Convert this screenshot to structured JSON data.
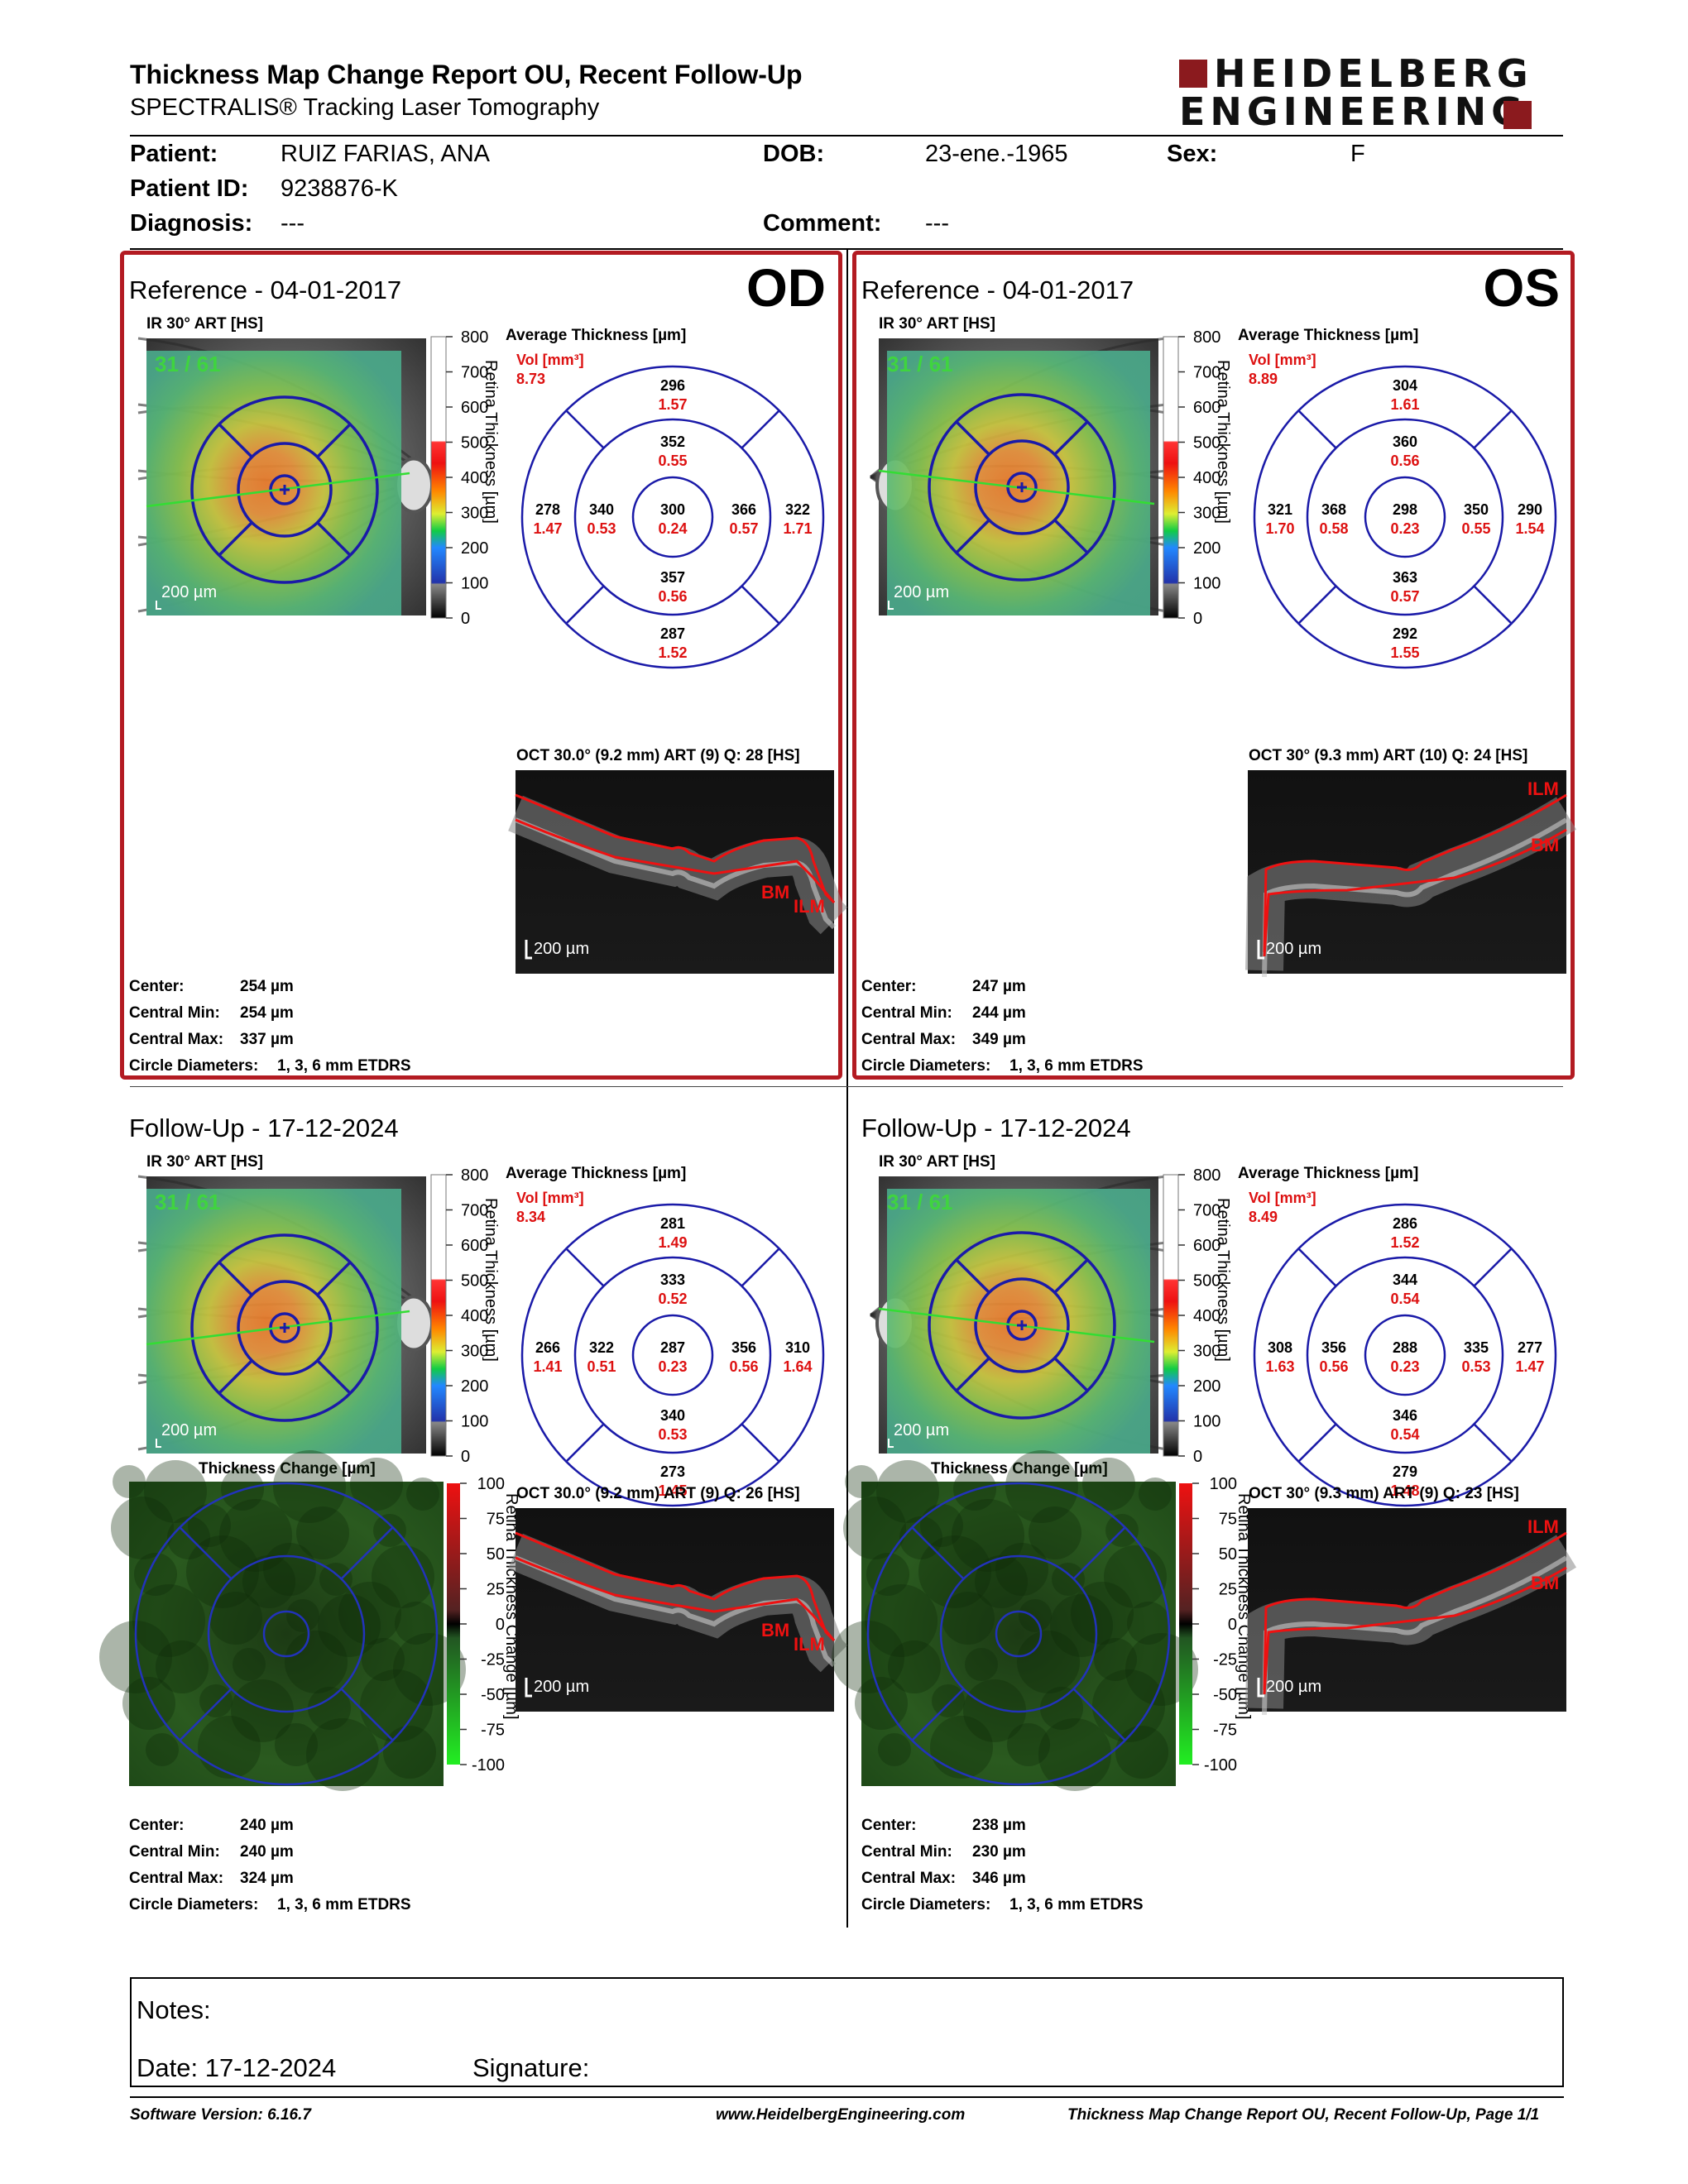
{
  "header": {
    "title": "Thickness Map Change Report OU, Recent Follow-Up",
    "subtitle": "SPECTRALIS® Tracking Laser Tomography",
    "brand_line1": "HEIDELBERG",
    "brand_line2": "ENGINEERING",
    "brand_color": "#8b1a1e"
  },
  "patient": {
    "patient_label": "Patient:",
    "patient_value": "RUIZ FARIAS, ANA",
    "dob_label": "DOB:",
    "dob_value": "23-ene.-1965",
    "sex_label": "Sex:",
    "sex_value": "F",
    "id_label": "Patient ID:",
    "id_value": "9238876-K",
    "diagnosis_label": "Diagnosis:",
    "diagnosis_value": "---",
    "comment_label": "Comment:",
    "comment_value": "---"
  },
  "colors": {
    "frame": "#b31b22",
    "measure_red": "#dd1111",
    "grid_blue": "#1a1aa8"
  },
  "common": {
    "ir_label": "IR 30° ART [HS]",
    "avg_label": "Average Thickness [µm]",
    "vol_label": "Vol [mm³]",
    "scale_label": "200 µm",
    "frame_count": "31 / 61",
    "colorbar_title": "Retina Thickness [µm]",
    "colorbar_ticks": [
      "800",
      "700",
      "600",
      "500",
      "400",
      "300",
      "200",
      "100",
      "0"
    ],
    "change_title": "Thickness Change [µm]",
    "change_bar_title": "Retina Thickness Change [µm]",
    "change_ticks": [
      "100",
      "75",
      "50",
      "25",
      "0",
      "-25",
      "-50",
      "-75",
      "-100"
    ],
    "ilm": "ILM",
    "bm": "BM",
    "center_label": "Center:",
    "min_label": "Central Min:",
    "max_label": "Central Max:",
    "circle_label": "Circle Diameters:",
    "circle_value": "1, 3, 6 mm ETDRS"
  },
  "panels": {
    "od_ref": {
      "title": "Reference - 04-01-2017",
      "eye": "OD",
      "oct": "OCT 30.0° (9.2 mm) ART (9) Q: 28 [HS]",
      "vol": "8.73",
      "etdrs": {
        "center": [
          "300",
          "0.24"
        ],
        "inner_top": [
          "352",
          "0.55"
        ],
        "inner_bottom": [
          "357",
          "0.56"
        ],
        "inner_left": [
          "340",
          "0.53"
        ],
        "inner_right": [
          "366",
          "0.57"
        ],
        "outer_top": [
          "296",
          "1.57"
        ],
        "outer_bottom": [
          "287",
          "1.52"
        ],
        "outer_left": [
          "278",
          "1.47"
        ],
        "outer_right": [
          "322",
          "1.71"
        ]
      },
      "center": "254 µm",
      "min": "254 µm",
      "max": "337 µm"
    },
    "os_ref": {
      "title": "Reference - 04-01-2017",
      "eye": "OS",
      "oct": "OCT 30° (9.3 mm) ART (10) Q: 24 [HS]",
      "vol": "8.89",
      "etdrs": {
        "center": [
          "298",
          "0.23"
        ],
        "inner_top": [
          "360",
          "0.56"
        ],
        "inner_bottom": [
          "363",
          "0.57"
        ],
        "inner_left": [
          "368",
          "0.58"
        ],
        "inner_right": [
          "350",
          "0.55"
        ],
        "outer_top": [
          "304",
          "1.61"
        ],
        "outer_bottom": [
          "292",
          "1.55"
        ],
        "outer_left": [
          "321",
          "1.70"
        ],
        "outer_right": [
          "290",
          "1.54"
        ]
      },
      "center": "247 µm",
      "min": "244 µm",
      "max": "349 µm"
    },
    "od_fu": {
      "title": "Follow-Up - 17-12-2024",
      "oct": "OCT 30.0° (9.2 mm) ART (9) Q: 26 [HS]",
      "vol": "8.34",
      "etdrs": {
        "center": [
          "287",
          "0.23"
        ],
        "inner_top": [
          "333",
          "0.52"
        ],
        "inner_bottom": [
          "340",
          "0.53"
        ],
        "inner_left": [
          "322",
          "0.51"
        ],
        "inner_right": [
          "356",
          "0.56"
        ],
        "outer_top": [
          "281",
          "1.49"
        ],
        "outer_bottom": [
          "273",
          "1.45"
        ],
        "outer_left": [
          "266",
          "1.41"
        ],
        "outer_right": [
          "310",
          "1.64"
        ]
      },
      "center": "240 µm",
      "min": "240 µm",
      "max": "324 µm"
    },
    "os_fu": {
      "title": "Follow-Up - 17-12-2024",
      "oct": "OCT 30° (9.3 mm) ART (9) Q: 23 [HS]",
      "vol": "8.49",
      "etdrs": {
        "center": [
          "288",
          "0.23"
        ],
        "inner_top": [
          "344",
          "0.54"
        ],
        "inner_bottom": [
          "346",
          "0.54"
        ],
        "inner_left": [
          "356",
          "0.56"
        ],
        "inner_right": [
          "335",
          "0.53"
        ],
        "outer_top": [
          "286",
          "1.52"
        ],
        "outer_bottom": [
          "279",
          "1.48"
        ],
        "outer_left": [
          "308",
          "1.63"
        ],
        "outer_right": [
          "277",
          "1.47"
        ]
      },
      "center": "238 µm",
      "min": "230 µm",
      "max": "346 µm"
    }
  },
  "notes": {
    "notes_label": "Notes:",
    "date_label": "Date: 17-12-2024",
    "signature_label": "Signature:"
  },
  "footer": {
    "software": "Software Version: 6.16.7",
    "website": "www.HeidelbergEngineering.com",
    "page": "Thickness Map Change Report OU, Recent Follow-Up, Page 1/1"
  }
}
